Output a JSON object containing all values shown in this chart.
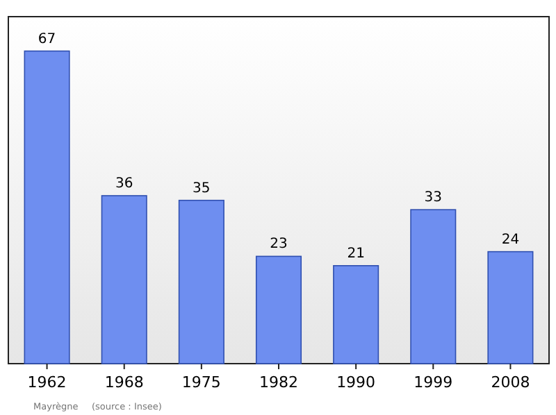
{
  "chart_data": {
    "type": "bar",
    "categories": [
      "1962",
      "1968",
      "1975",
      "1982",
      "1990",
      "1999",
      "2008"
    ],
    "values": [
      67,
      36,
      35,
      23,
      21,
      33,
      24
    ],
    "color": "#6e8ef0",
    "data_labels": true,
    "grid": false,
    "annotations": [
      "Mayrègne",
      "(source : Insee)"
    ]
  }
}
